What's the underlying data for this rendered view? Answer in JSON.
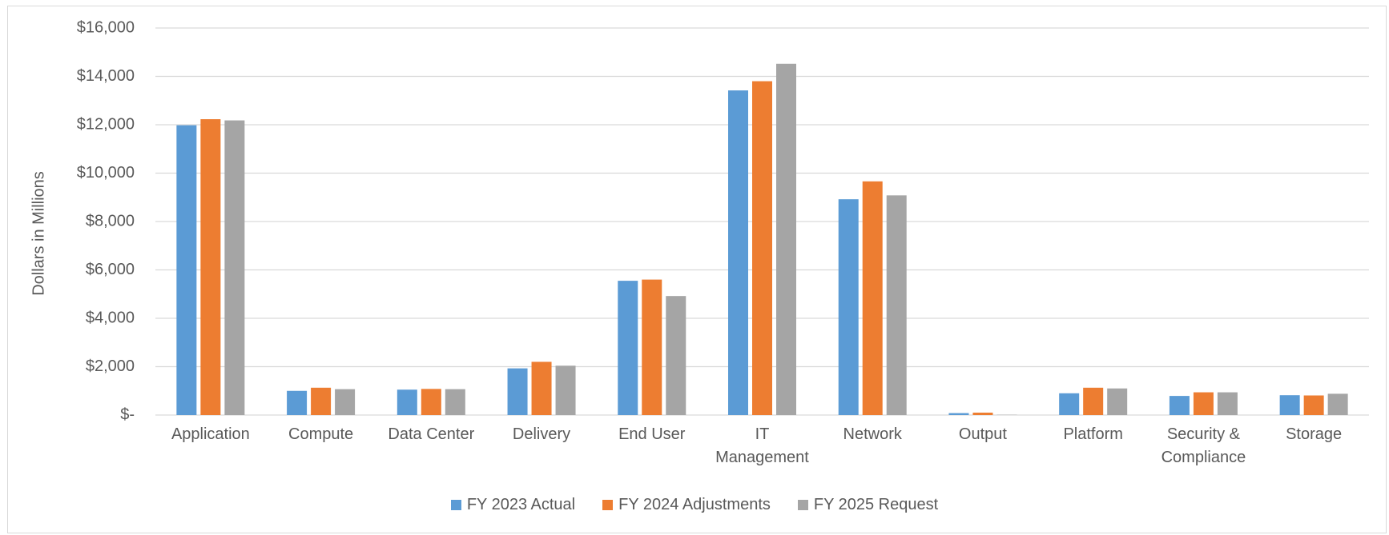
{
  "chart_data": {
    "type": "bar",
    "y_label": "Dollars in Millions",
    "categories": [
      "Application",
      "Compute",
      "Data Center",
      "Delivery",
      "End User",
      "IT Management",
      "Network",
      "Output",
      "Platform",
      "Security & Compliance",
      "Storage"
    ],
    "series": [
      {
        "name": "FY 2023 Actual",
        "color": "#5b9bd5",
        "values": [
          11980,
          1000,
          1050,
          1930,
          5550,
          13420,
          8920,
          80,
          900,
          790,
          820
        ]
      },
      {
        "name": "FY 2024 Adjustments",
        "color": "#ed7d31",
        "values": [
          12230,
          1130,
          1080,
          2200,
          5600,
          13800,
          9660,
          100,
          1130,
          940,
          810
        ]
      },
      {
        "name": "FY 2025 Request",
        "color": "#a5a5a5",
        "values": [
          12180,
          1070,
          1070,
          2040,
          4920,
          14520,
          9080,
          10,
          1100,
          940,
          880
        ]
      }
    ],
    "ylim": [
      0,
      16000
    ],
    "yticks": [
      {
        "value": 0,
        "label": "$-"
      },
      {
        "value": 2000,
        "label": "$2,000"
      },
      {
        "value": 4000,
        "label": "$4,000"
      },
      {
        "value": 6000,
        "label": "$6,000"
      },
      {
        "value": 8000,
        "label": "$8,000"
      },
      {
        "value": 10000,
        "label": "$10,000"
      },
      {
        "value": 12000,
        "label": "$12,000"
      },
      {
        "value": 14000,
        "label": "$14,000"
      },
      {
        "value": 16000,
        "label": "$16,000"
      }
    ],
    "grid": true,
    "legend": "bottom"
  }
}
